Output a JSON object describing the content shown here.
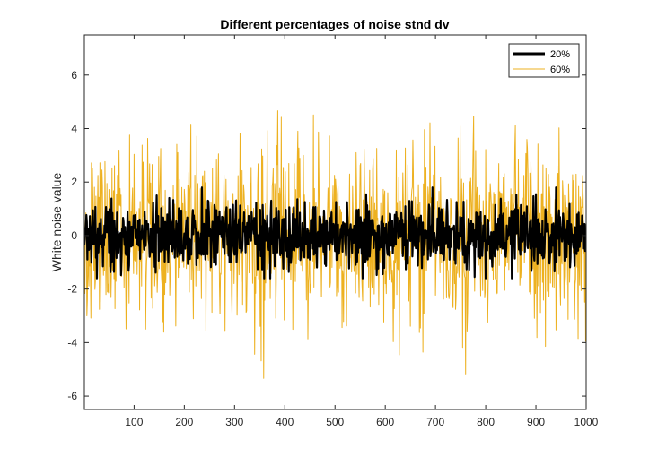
{
  "chart_data": {
    "type": "line",
    "title": "Different percentages of noise stnd dv",
    "xlabel": "",
    "ylabel": "White noise value",
    "xlim": [
      1,
      1000
    ],
    "ylim": [
      -6.5,
      7.5
    ],
    "xticks": [
      100,
      200,
      300,
      400,
      500,
      600,
      700,
      800,
      900,
      1000
    ],
    "yticks": [
      -6,
      -4,
      -2,
      0,
      2,
      4,
      6
    ],
    "grid": false,
    "legend_position": "top-right",
    "series": [
      {
        "name": "20%",
        "color": "#000000",
        "std": 0.6,
        "seed": 20,
        "n": 1000,
        "approx_range": [
          -1.6,
          1.8
        ]
      },
      {
        "name": "60%",
        "color": "#EDB120",
        "std": 1.8,
        "seed": 60,
        "n": 1000,
        "approx_range": [
          -6.6,
          5.9
        ]
      }
    ]
  }
}
